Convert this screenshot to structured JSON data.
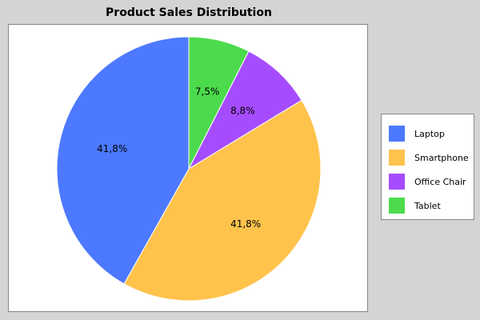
{
  "chart_data": {
    "type": "pie",
    "title": "Product Sales Distribution",
    "start_angle_deg": 90,
    "direction": "clockwise",
    "legend_position": "right",
    "slices": [
      {
        "name": "Tablet",
        "value": 7.5,
        "label": "7,5%",
        "color": "#4cdb4c"
      },
      {
        "name": "Office Chair",
        "value": 8.8,
        "label": "8,8%",
        "color": "#a64cff"
      },
      {
        "name": "Smartphone",
        "value": 41.8,
        "label": "41,8%",
        "color": "#ffc34c"
      },
      {
        "name": "Laptop",
        "value": 41.8,
        "label": "41,8%",
        "color": "#4c79ff"
      }
    ],
    "legend": [
      {
        "name": "Laptop",
        "color": "#4c79ff"
      },
      {
        "name": "Smartphone",
        "color": "#ffc34c"
      },
      {
        "name": "Office Chair",
        "color": "#a64cff"
      },
      {
        "name": "Tablet",
        "color": "#4cdb4c"
      }
    ]
  }
}
